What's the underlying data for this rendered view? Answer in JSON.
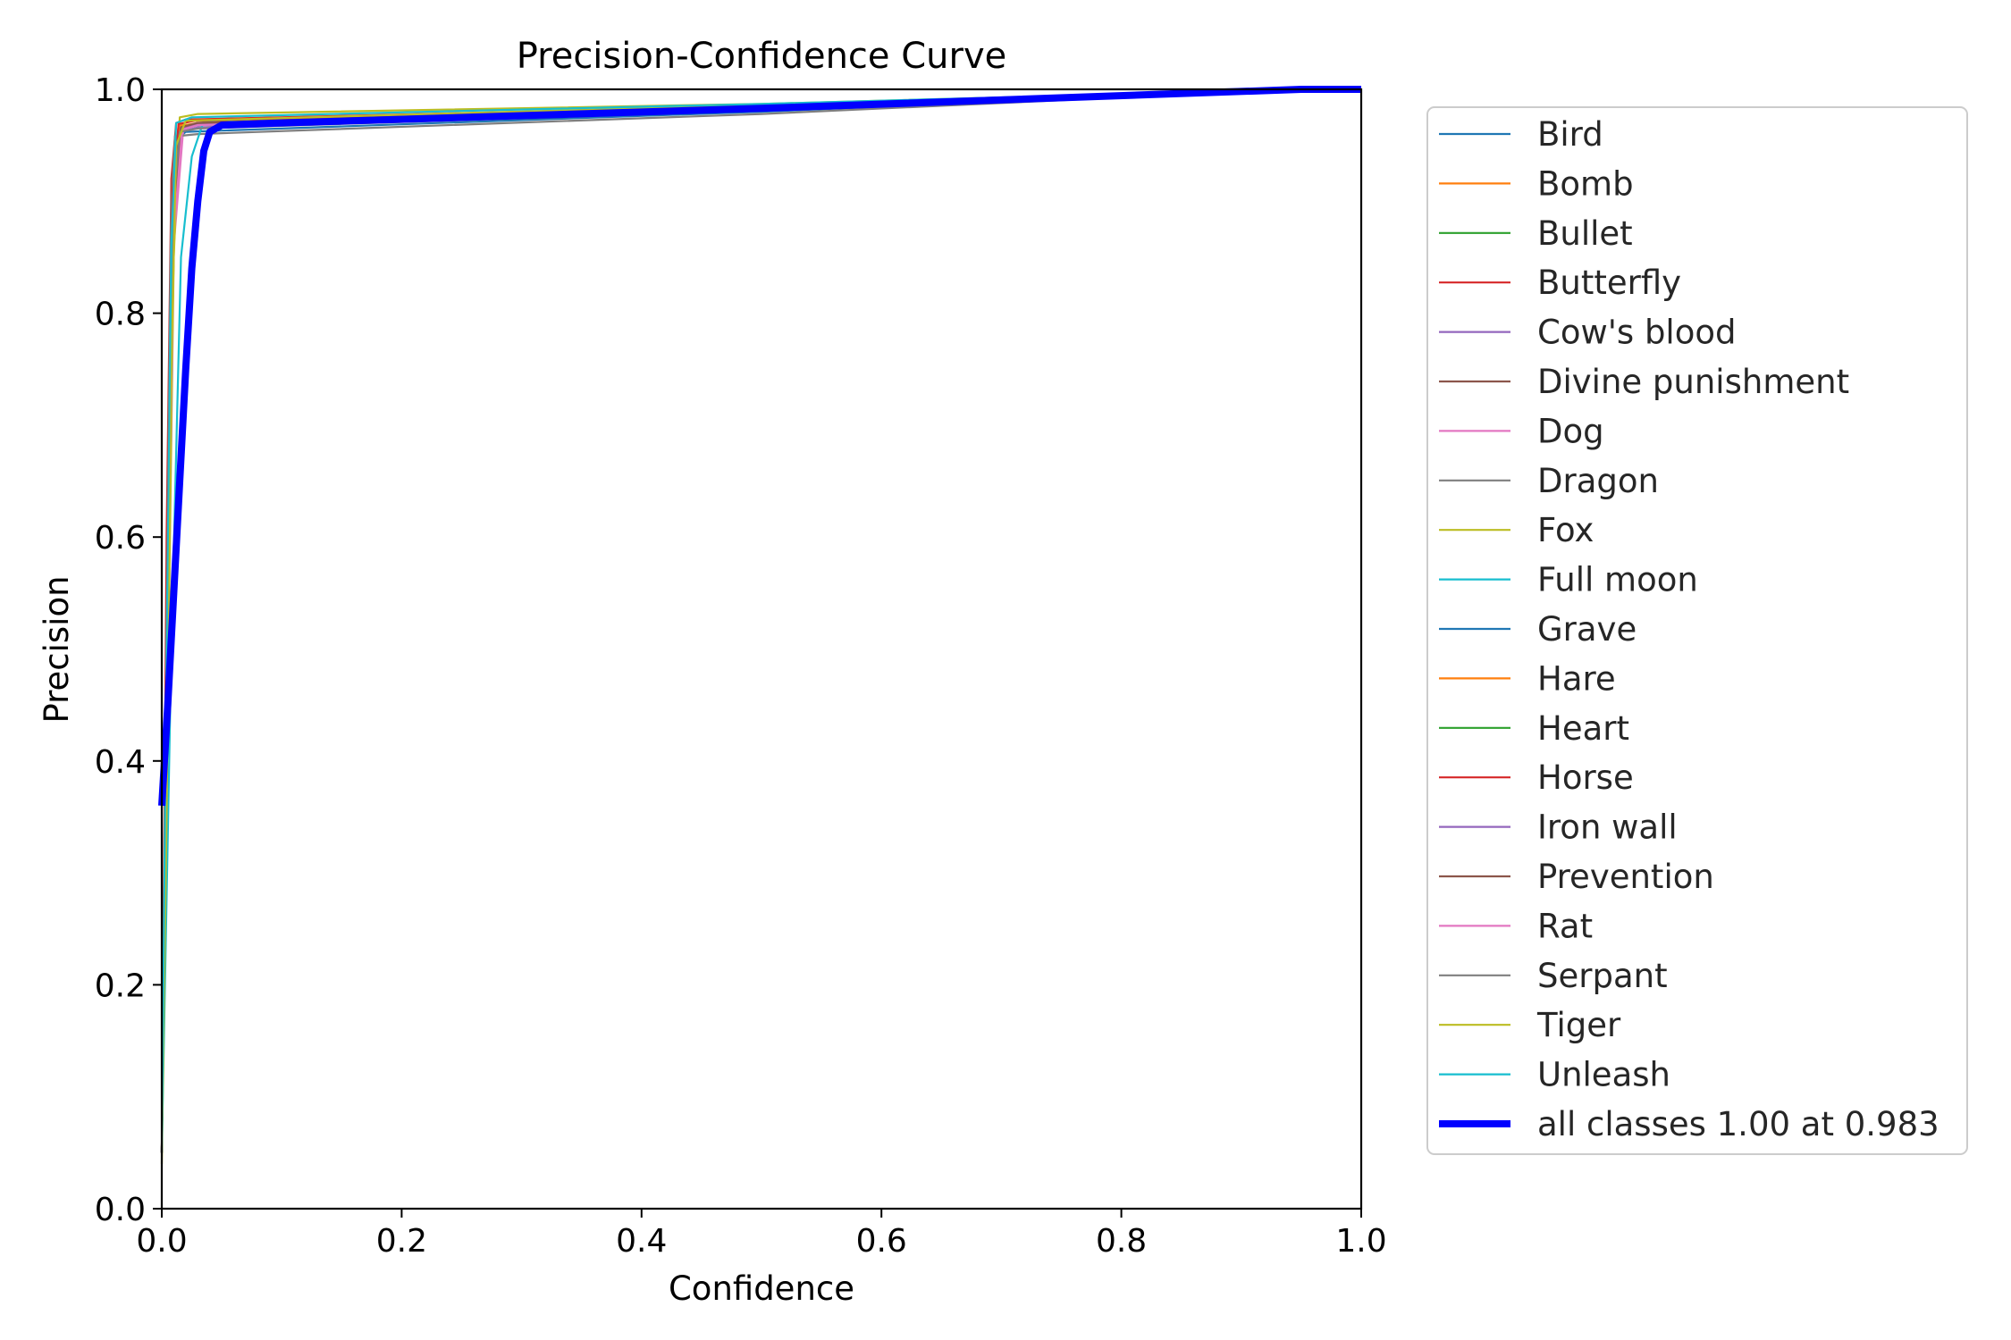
{
  "chart_data": {
    "type": "line",
    "title": "Precision-Confidence Curve",
    "xlabel": "Confidence",
    "ylabel": "Precision",
    "xlim": [
      0,
      1
    ],
    "ylim": [
      0,
      1
    ],
    "xticks": [
      "0.0",
      "0.2",
      "0.4",
      "0.6",
      "0.8",
      "1.0"
    ],
    "yticks": [
      "0.0",
      "0.2",
      "0.4",
      "0.6",
      "0.8",
      "1.0"
    ],
    "grid": false,
    "legend_position": "outside-right",
    "series": [
      {
        "name": "Bird",
        "color": "#1f77b4",
        "points": [
          [
            0.0,
            0.05
          ],
          [
            0.004,
            0.5
          ],
          [
            0.008,
            0.85
          ],
          [
            0.012,
            0.955
          ],
          [
            0.02,
            0.962
          ],
          [
            0.5,
            0.98
          ],
          [
            0.95,
            1.0
          ],
          [
            1.0,
            1.0
          ]
        ]
      },
      {
        "name": "Bomb",
        "color": "#ff7f0e",
        "points": [
          [
            0.0,
            0.05
          ],
          [
            0.005,
            0.55
          ],
          [
            0.01,
            0.9
          ],
          [
            0.014,
            0.968
          ],
          [
            0.025,
            0.972
          ],
          [
            0.5,
            0.985
          ],
          [
            0.95,
            1.0
          ],
          [
            1.0,
            1.0
          ]
        ]
      },
      {
        "name": "Bullet",
        "color": "#2ca02c",
        "points": [
          [
            0.0,
            0.05
          ],
          [
            0.005,
            0.5
          ],
          [
            0.01,
            0.88
          ],
          [
            0.016,
            0.965
          ],
          [
            0.03,
            0.97
          ],
          [
            0.5,
            0.984
          ],
          [
            0.95,
            1.0
          ],
          [
            1.0,
            1.0
          ]
        ]
      },
      {
        "name": "Butterfly",
        "color": "#d62728",
        "points": [
          [
            0.0,
            0.05
          ],
          [
            0.004,
            0.6
          ],
          [
            0.008,
            0.92
          ],
          [
            0.012,
            0.97
          ],
          [
            0.02,
            0.973
          ],
          [
            0.5,
            0.985
          ],
          [
            0.95,
            1.0
          ],
          [
            1.0,
            1.0
          ]
        ]
      },
      {
        "name": "Cow's blood",
        "color": "#9467bd",
        "points": [
          [
            0.0,
            0.05
          ],
          [
            0.005,
            0.5
          ],
          [
            0.01,
            0.87
          ],
          [
            0.016,
            0.962
          ],
          [
            0.03,
            0.966
          ],
          [
            0.5,
            0.982
          ],
          [
            0.95,
            1.0
          ],
          [
            1.0,
            1.0
          ]
        ]
      },
      {
        "name": "Divine punishment",
        "color": "#8c564b",
        "points": [
          [
            0.0,
            0.05
          ],
          [
            0.005,
            0.55
          ],
          [
            0.01,
            0.9
          ],
          [
            0.015,
            0.964
          ],
          [
            0.028,
            0.968
          ],
          [
            0.5,
            0.983
          ],
          [
            0.95,
            1.0
          ],
          [
            1.0,
            1.0
          ]
        ]
      },
      {
        "name": "Dog",
        "color": "#e377c2",
        "points": [
          [
            0.0,
            0.05
          ],
          [
            0.005,
            0.5
          ],
          [
            0.01,
            0.86
          ],
          [
            0.018,
            0.966
          ],
          [
            0.03,
            0.97
          ],
          [
            0.5,
            0.984
          ],
          [
            0.95,
            1.0
          ],
          [
            1.0,
            1.0
          ]
        ]
      },
      {
        "name": "Dragon",
        "color": "#7f7f7f",
        "points": [
          [
            0.0,
            0.05
          ],
          [
            0.004,
            0.55
          ],
          [
            0.008,
            0.9
          ],
          [
            0.011,
            0.958
          ],
          [
            0.03,
            0.96
          ],
          [
            0.5,
            0.978
          ],
          [
            0.95,
            1.0
          ],
          [
            1.0,
            1.0
          ]
        ]
      },
      {
        "name": "Fox",
        "color": "#bcbd22",
        "points": [
          [
            0.0,
            0.05
          ],
          [
            0.005,
            0.45
          ],
          [
            0.01,
            0.85
          ],
          [
            0.015,
            0.975
          ],
          [
            0.03,
            0.978
          ],
          [
            0.5,
            0.987
          ],
          [
            0.95,
            1.0
          ],
          [
            1.0,
            1.0
          ]
        ]
      },
      {
        "name": "Full moon",
        "color": "#17becf",
        "points": [
          [
            0.0,
            0.05
          ],
          [
            0.008,
            0.5
          ],
          [
            0.016,
            0.85
          ],
          [
            0.025,
            0.94
          ],
          [
            0.035,
            0.972
          ],
          [
            0.5,
            0.985
          ],
          [
            0.95,
            1.0
          ],
          [
            1.0,
            1.0
          ]
        ]
      },
      {
        "name": "Grave",
        "color": "#1f77b4",
        "points": [
          [
            0.0,
            0.05
          ],
          [
            0.005,
            0.5
          ],
          [
            0.01,
            0.88
          ],
          [
            0.016,
            0.964
          ],
          [
            0.03,
            0.968
          ],
          [
            0.5,
            0.983
          ],
          [
            0.95,
            1.0
          ],
          [
            1.0,
            1.0
          ]
        ]
      },
      {
        "name": "Hare",
        "color": "#ff7f0e",
        "points": [
          [
            0.0,
            0.05
          ],
          [
            0.005,
            0.55
          ],
          [
            0.01,
            0.9
          ],
          [
            0.015,
            0.967
          ],
          [
            0.03,
            0.97
          ],
          [
            0.5,
            0.984
          ],
          [
            0.95,
            1.0
          ],
          [
            1.0,
            1.0
          ]
        ]
      },
      {
        "name": "Heart",
        "color": "#2ca02c",
        "points": [
          [
            0.0,
            0.05
          ],
          [
            0.005,
            0.5
          ],
          [
            0.01,
            0.89
          ],
          [
            0.016,
            0.966
          ],
          [
            0.03,
            0.97
          ],
          [
            0.5,
            0.984
          ],
          [
            0.95,
            1.0
          ],
          [
            1.0,
            1.0
          ]
        ]
      },
      {
        "name": "Horse",
        "color": "#d62728",
        "points": [
          [
            0.0,
            0.05
          ],
          [
            0.004,
            0.55
          ],
          [
            0.009,
            0.91
          ],
          [
            0.014,
            0.969
          ],
          [
            0.028,
            0.972
          ],
          [
            0.5,
            0.985
          ],
          [
            0.95,
            1.0
          ],
          [
            1.0,
            1.0
          ]
        ]
      },
      {
        "name": "Iron wall",
        "color": "#9467bd",
        "points": [
          [
            0.0,
            0.05
          ],
          [
            0.005,
            0.5
          ],
          [
            0.01,
            0.88
          ],
          [
            0.016,
            0.965
          ],
          [
            0.03,
            0.969
          ],
          [
            0.5,
            0.984
          ],
          [
            0.95,
            1.0
          ],
          [
            1.0,
            1.0
          ]
        ]
      },
      {
        "name": "Prevention",
        "color": "#8c564b",
        "points": [
          [
            0.0,
            0.05
          ],
          [
            0.005,
            0.52
          ],
          [
            0.01,
            0.89
          ],
          [
            0.016,
            0.966
          ],
          [
            0.03,
            0.97
          ],
          [
            0.5,
            0.984
          ],
          [
            0.95,
            1.0
          ],
          [
            1.0,
            1.0
          ]
        ]
      },
      {
        "name": "Rat",
        "color": "#e377c2",
        "points": [
          [
            0.0,
            0.05
          ],
          [
            0.005,
            0.5
          ],
          [
            0.01,
            0.87
          ],
          [
            0.017,
            0.964
          ],
          [
            0.03,
            0.968
          ],
          [
            0.5,
            0.983
          ],
          [
            0.95,
            1.0
          ],
          [
            1.0,
            1.0
          ]
        ]
      },
      {
        "name": "Serpant",
        "color": "#7f7f7f",
        "points": [
          [
            0.0,
            0.05
          ],
          [
            0.005,
            0.55
          ],
          [
            0.01,
            0.9
          ],
          [
            0.015,
            0.962
          ],
          [
            0.03,
            0.965
          ],
          [
            0.5,
            0.981
          ],
          [
            0.95,
            1.0
          ],
          [
            1.0,
            1.0
          ]
        ]
      },
      {
        "name": "Tiger",
        "color": "#bcbd22",
        "points": [
          [
            0.0,
            0.04
          ],
          [
            0.004,
            0.35
          ],
          [
            0.008,
            0.75
          ],
          [
            0.012,
            0.95
          ],
          [
            0.02,
            0.972
          ],
          [
            0.5,
            0.986
          ],
          [
            0.95,
            1.0
          ],
          [
            1.0,
            1.0
          ]
        ]
      },
      {
        "name": "Unleash",
        "color": "#17becf",
        "points": [
          [
            0.0,
            0.05
          ],
          [
            0.004,
            0.5
          ],
          [
            0.008,
            0.86
          ],
          [
            0.012,
            0.97
          ],
          [
            0.025,
            0.975
          ],
          [
            0.5,
            0.987
          ],
          [
            0.95,
            1.0
          ],
          [
            1.0,
            1.0
          ]
        ]
      },
      {
        "name": "all classes 1.00 at 0.983",
        "color": "#0000ff",
        "bold": true,
        "points": [
          [
            0.0,
            0.36
          ],
          [
            0.005,
            0.45
          ],
          [
            0.01,
            0.55
          ],
          [
            0.015,
            0.65
          ],
          [
            0.02,
            0.75
          ],
          [
            0.025,
            0.84
          ],
          [
            0.03,
            0.9
          ],
          [
            0.035,
            0.945
          ],
          [
            0.04,
            0.962
          ],
          [
            0.05,
            0.968
          ],
          [
            0.1,
            0.97
          ],
          [
            0.5,
            0.983
          ],
          [
            0.95,
            1.0
          ],
          [
            1.0,
            1.0
          ]
        ]
      }
    ]
  }
}
